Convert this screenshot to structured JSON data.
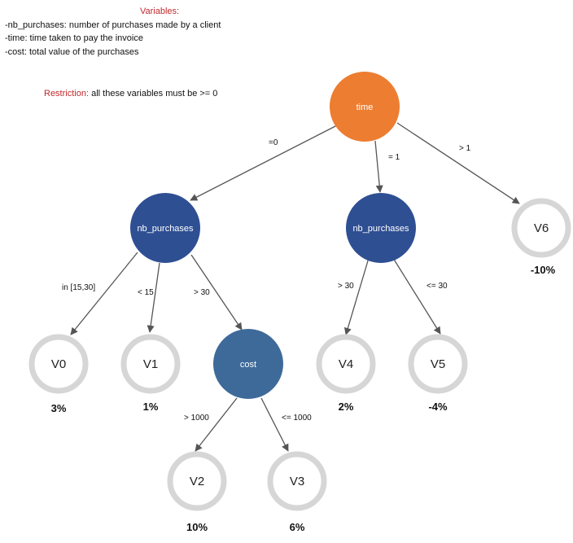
{
  "legend": {
    "title": "Variables:",
    "lines": [
      "-nb_purchases: number of purchases made by a client",
      "-time: time taken to pay the invoice",
      "-cost: total value of the purchases"
    ],
    "restriction_label": "Restriction:",
    "restriction_text": " all these variables must be >= 0"
  },
  "colors": {
    "root": "#ed7d31",
    "decision": "#2f4f93",
    "cost": "#3e6a9a",
    "leaf_ring": "#d6d6d6",
    "edge": "#555555",
    "accent_text": "#c0282d"
  },
  "nodes": {
    "time": "time",
    "nb1": "nb_purchases",
    "nb2": "nb_purchases",
    "cost": "cost"
  },
  "leaves": {
    "v0": {
      "label": "V0",
      "value": "3%"
    },
    "v1": {
      "label": "V1",
      "value": "1%"
    },
    "v2": {
      "label": "V2",
      "value": "10%"
    },
    "v3": {
      "label": "V3",
      "value": "6%"
    },
    "v4": {
      "label": "V4",
      "value": "2%"
    },
    "v5": {
      "label": "V5",
      "value": "-4%"
    },
    "v6": {
      "label": "V6",
      "value": "-10%"
    }
  },
  "edges": {
    "time_nb1": "=0",
    "time_nb2": "= 1",
    "time_v6": "> 1",
    "nb1_v0": "in [15,30]",
    "nb1_v1": "< 15",
    "nb1_cost": "> 30",
    "cost_v2": "> 1000",
    "cost_v3": "<= 1000",
    "nb2_v4": "> 30",
    "nb2_v5": "<= 30"
  }
}
